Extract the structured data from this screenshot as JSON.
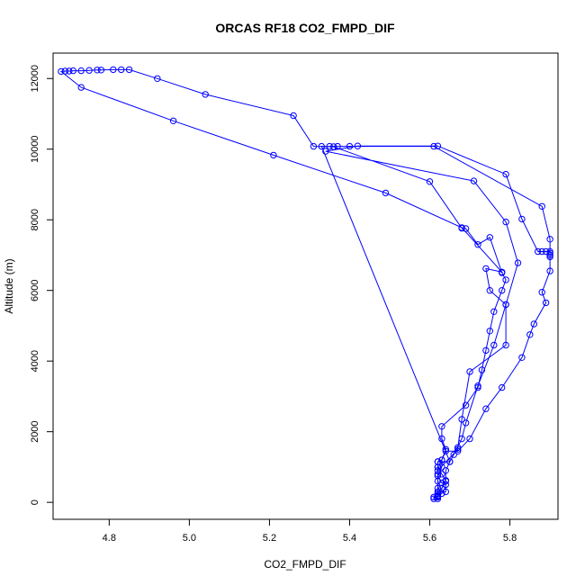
{
  "chart_data": {
    "type": "line",
    "title": "ORCAS RF18 CO2_FMPD_DIF",
    "xlabel": "CO2_FMPD_DIF",
    "ylabel": "Altitude (m)",
    "xlim": [
      4.66,
      5.92
    ],
    "ylim": [
      -480,
      12720
    ],
    "xticks": [
      "4.8",
      "5.0",
      "5.2",
      "5.4",
      "5.6",
      "5.8"
    ],
    "xtick_values": [
      4.8,
      5.0,
      5.2,
      5.4,
      5.6,
      5.8
    ],
    "yticks": [
      "0",
      "2000",
      "4000",
      "6000",
      "8000",
      "10000",
      "12000"
    ],
    "ytick_values": [
      0,
      2000,
      4000,
      6000,
      8000,
      10000,
      12000
    ],
    "grid": false,
    "legend": "none",
    "series_color": "#0000ff",
    "marker": "open-circle",
    "points": [
      [
        5.62,
        150
      ],
      [
        5.62,
        170
      ],
      [
        5.63,
        250
      ],
      [
        5.63,
        400
      ],
      [
        5.64,
        620
      ],
      [
        5.63,
        800
      ],
      [
        5.62,
        1000
      ],
      [
        5.62,
        1150
      ],
      [
        5.63,
        1200
      ],
      [
        5.64,
        1500
      ],
      [
        5.63,
        1800
      ],
      [
        5.63,
        2150
      ],
      [
        5.69,
        2750
      ],
      [
        5.72,
        3250
      ],
      [
        5.73,
        3750
      ],
      [
        5.74,
        4300
      ],
      [
        5.75,
        4850
      ],
      [
        5.76,
        5400
      ],
      [
        5.78,
        6000
      ],
      [
        5.79,
        6300
      ],
      [
        5.78,
        6500
      ],
      [
        5.75,
        7500
      ],
      [
        5.72,
        7300
      ],
      [
        5.69,
        7750
      ],
      [
        5.68,
        7760
      ],
      [
        5.6,
        9080
      ],
      [
        5.36,
        10070
      ],
      [
        5.31,
        10080
      ],
      [
        5.26,
        10950
      ],
      [
        5.04,
        11550
      ],
      [
        4.92,
        12000
      ],
      [
        4.85,
        12250
      ],
      [
        4.83,
        12250
      ],
      [
        4.81,
        12250
      ],
      [
        4.78,
        12240
      ],
      [
        4.77,
        12240
      ],
      [
        4.75,
        12230
      ],
      [
        4.73,
        12220
      ],
      [
        4.71,
        12220
      ],
      [
        4.7,
        12210
      ],
      [
        4.69,
        12210
      ],
      [
        4.68,
        12200
      ],
      [
        4.73,
        11750
      ],
      [
        4.96,
        10800
      ],
      [
        5.21,
        9830
      ],
      [
        5.49,
        8760
      ],
      [
        5.68,
        7780
      ],
      [
        5.78,
        6520
      ],
      [
        5.74,
        6620
      ],
      [
        5.75,
        6000
      ],
      [
        5.79,
        5600
      ],
      [
        5.76,
        4450
      ],
      [
        5.72,
        3300
      ],
      [
        5.69,
        2250
      ],
      [
        5.68,
        1800
      ],
      [
        5.66,
        1350
      ],
      [
        5.65,
        1150
      ],
      [
        5.64,
        900
      ],
      [
        5.64,
        600
      ],
      [
        5.63,
        400
      ],
      [
        5.62,
        300
      ],
      [
        5.61,
        100
      ],
      [
        5.61,
        150
      ],
      [
        5.62,
        250
      ],
      [
        5.64,
        300
      ],
      [
        5.64,
        500
      ],
      [
        5.63,
        550
      ],
      [
        5.62,
        750
      ],
      [
        5.63,
        1000
      ],
      [
        5.63,
        1200
      ],
      [
        5.64,
        1450
      ],
      [
        5.67,
        1450
      ],
      [
        5.7,
        1800
      ],
      [
        5.74,
        2650
      ],
      [
        5.78,
        3250
      ],
      [
        5.83,
        4100
      ],
      [
        5.85,
        4750
      ],
      [
        5.86,
        5050
      ],
      [
        5.89,
        5650
      ],
      [
        5.88,
        5950
      ],
      [
        5.9,
        6550
      ],
      [
        5.9,
        7000
      ],
      [
        5.9,
        7100
      ],
      [
        5.89,
        7100
      ],
      [
        5.88,
        7100
      ],
      [
        5.87,
        7100
      ],
      [
        5.83,
        8020
      ],
      [
        5.79,
        9290
      ],
      [
        5.62,
        10090
      ],
      [
        5.42,
        10090
      ],
      [
        5.34,
        9940
      ],
      [
        5.71,
        9100
      ],
      [
        5.79,
        7940
      ],
      [
        5.82,
        6780
      ],
      [
        5.79,
        5600
      ],
      [
        5.79,
        4450
      ],
      [
        5.7,
        3700
      ],
      [
        5.68,
        2350
      ],
      [
        5.67,
        1550
      ],
      [
        5.67,
        1500
      ],
      [
        5.62,
        900
      ],
      [
        5.62,
        600
      ],
      [
        5.62,
        400
      ],
      [
        5.62,
        150
      ],
      [
        5.62,
        100
      ],
      [
        5.62,
        200
      ],
      [
        5.62,
        800
      ],
      [
        5.62,
        1000
      ],
      [
        5.62,
        1150
      ],
      [
        5.65,
        1150
      ],
      [
        5.33,
        10080
      ],
      [
        5.35,
        10080
      ],
      [
        5.37,
        10080
      ],
      [
        5.4,
        10080
      ],
      [
        5.61,
        10080
      ],
      [
        5.88,
        8380
      ],
      [
        5.9,
        7450
      ],
      [
        5.9,
        7050
      ],
      [
        5.9,
        6950
      ]
    ]
  }
}
